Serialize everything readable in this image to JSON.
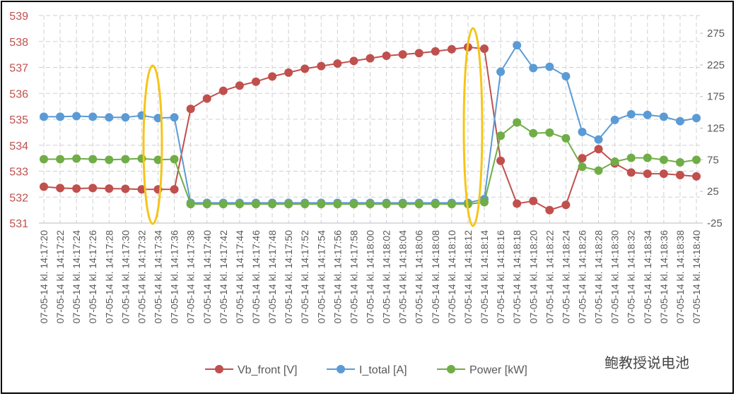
{
  "chart_data": {
    "type": "line",
    "categories": [
      "07-05-14 kl. 14:17:20",
      "07-05-14 kl. 14:17:22",
      "07-05-14 kl. 14:17:24",
      "07-05-14 kl. 14:17:26",
      "07-05-14 kl. 14:17:28",
      "07-05-14 kl. 14:17:30",
      "07-05-14 kl. 14:17:32",
      "07-05-14 kl. 14:17:34",
      "07-05-14 kl. 14:17:36",
      "07-05-14 kl. 14:17:38",
      "07-05-14 kl. 14:17:40",
      "07-05-14 kl. 14:17:42",
      "07-05-14 kl. 14:17:44",
      "07-05-14 kl. 14:17:46",
      "07-05-14 kl. 14:17:48",
      "07-05-14 kl. 14:17:50",
      "07-05-14 kl. 14:17:52",
      "07-05-14 kl. 14:17:54",
      "07-05-14 kl. 14:17:56",
      "07-05-14 kl. 14:17:58",
      "07-05-14 kl. 14:18:00",
      "07-05-14 kl. 14:18:02",
      "07-05-14 kl. 14:18:04",
      "07-05-14 kl. 14:18:06",
      "07-05-14 kl. 14:18:08",
      "07-05-14 kl. 14:18:10",
      "07-05-14 kl. 14:18:12",
      "07-05-14 kl. 14:18:14",
      "07-05-14 kl. 14:18:16",
      "07-05-14 kl. 14:18:18",
      "07-05-14 kl. 14:18:20",
      "07-05-14 kl. 14:18:22",
      "07-05-14 kl. 14:18:24",
      "07-05-14 kl. 14:18:26",
      "07-05-14 kl. 14:18:28",
      "07-05-14 kl. 14:18:30",
      "07-05-14 kl. 14:18:32",
      "07-05-14 kl. 14:18:34",
      "07-05-14 kl. 14:18:36",
      "07-05-14 kl. 14:18:38",
      "07-05-14 kl. 14:18:40"
    ],
    "series": [
      {
        "name": "Vb_front [V]",
        "color": "#c0504d",
        "values": [
          532.4,
          532.35,
          532.33,
          532.35,
          532.33,
          532.32,
          532.3,
          532.3,
          532.3,
          535.4,
          535.8,
          536.1,
          536.3,
          536.45,
          536.65,
          536.8,
          536.95,
          537.05,
          537.15,
          537.25,
          537.35,
          537.45,
          537.5,
          537.55,
          537.62,
          537.7,
          537.78,
          537.72,
          533.4,
          531.75,
          531.85,
          531.5,
          531.7,
          533.5,
          533.85,
          533.3,
          532.95,
          532.9,
          532.9,
          532.85,
          532.8
        ]
      },
      {
        "name": "I_total [A]",
        "color": "#5b9bd5",
        "axis": "y2",
        "values": [
          143,
          143,
          144,
          143,
          142,
          142,
          145,
          141,
          142,
          7,
          7,
          7,
          7,
          7,
          7,
          7,
          7,
          7,
          7,
          7,
          7,
          7,
          7,
          7,
          7,
          7,
          7,
          13,
          214,
          256,
          220,
          222,
          207,
          119,
          107,
          138,
          147,
          146,
          143,
          136,
          141
        ]
      },
      {
        "name": "Power [kW]",
        "color": "#70ad47",
        "axis": "y2",
        "values": [
          76,
          76,
          77,
          76,
          75,
          76,
          77,
          75,
          76,
          5,
          5,
          5,
          5,
          5,
          5,
          5,
          5,
          5,
          5,
          5,
          5,
          5,
          5,
          5,
          5,
          5,
          5,
          8,
          113,
          134,
          117,
          118,
          109,
          64,
          58,
          72,
          78,
          78,
          75,
          71,
          75
        ]
      }
    ],
    "ylim": [
      531,
      539
    ],
    "yticks": [
      531,
      532,
      533,
      534,
      535,
      536,
      537,
      538,
      539
    ],
    "y2lim": [
      -25,
      303
    ],
    "y2ticks": [
      -25,
      25,
      75,
      125,
      175,
      225,
      275
    ],
    "grid": true,
    "legend": "bottom",
    "watermark": "鲍教授说电池"
  }
}
